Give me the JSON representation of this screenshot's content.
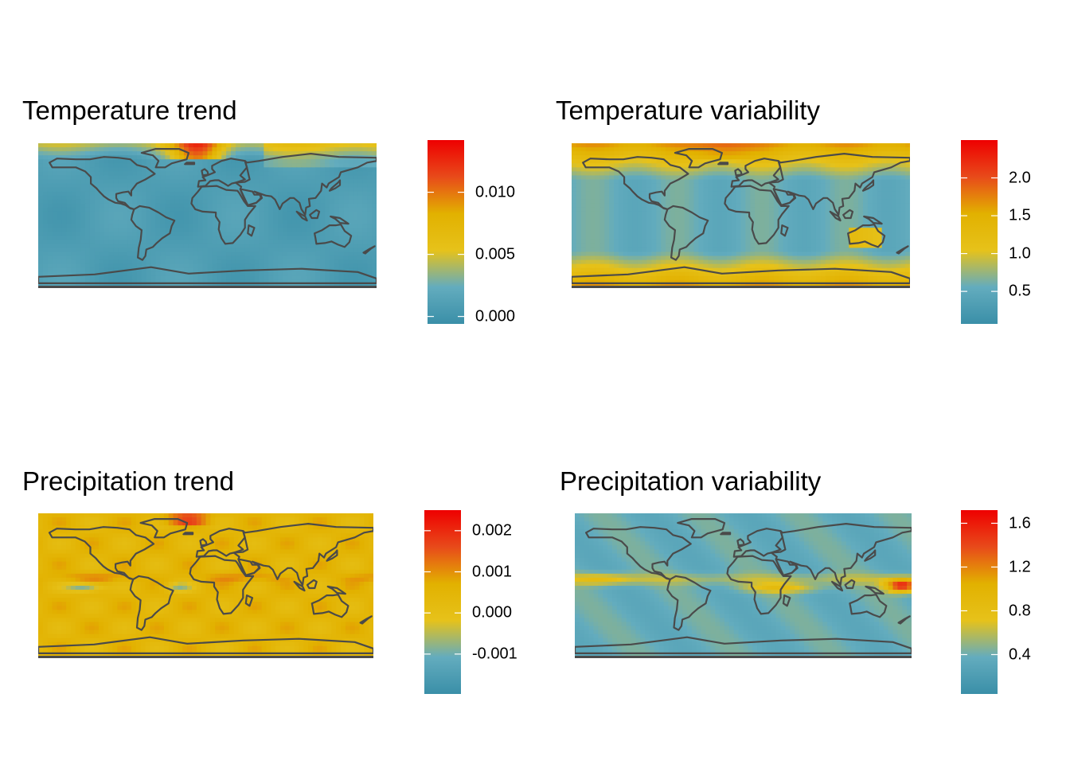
{
  "palette": [
    "#3a8fa8",
    "#63acbe",
    "#e6c21a",
    "#e2b100",
    "#e84a1a",
    "#ee0000"
  ],
  "land_color": "#4a4a4a",
  "panels": [
    {
      "id": "temp-trend",
      "title": "Temperature trend",
      "field": "temperature-trend",
      "legend": {
        "min": -0.0006,
        "max": 0.0142,
        "ticks": [
          {
            "v": 0.0,
            "label": "0.000"
          },
          {
            "v": 0.005,
            "label": "0.005"
          },
          {
            "v": 0.01,
            "label": "0.010"
          }
        ]
      },
      "pattern": "temp-trend"
    },
    {
      "id": "temp-var",
      "title": "Temperature variability",
      "field": "temperature-variability",
      "legend": {
        "min": 0.07,
        "max": 2.5,
        "ticks": [
          {
            "v": 0.5,
            "label": "0.5"
          },
          {
            "v": 1.0,
            "label": "1.0"
          },
          {
            "v": 1.5,
            "label": "1.5"
          },
          {
            "v": 2.0,
            "label": "2.0"
          }
        ]
      },
      "pattern": "temp-var"
    },
    {
      "id": "precip-trend",
      "title": "Precipitation trend",
      "field": "precipitation-trend",
      "legend": {
        "min": -0.00197,
        "max": 0.0025,
        "ticks": [
          {
            "v": -0.001,
            "label": "-0.001"
          },
          {
            "v": 0.0,
            "label": "0.000"
          },
          {
            "v": 0.001,
            "label": "0.001"
          },
          {
            "v": 0.002,
            "label": "0.002"
          }
        ]
      },
      "pattern": "precip-trend"
    },
    {
      "id": "precip-var",
      "title": "Precipitation variability",
      "field": "precipitation-variability",
      "legend": {
        "min": 0.04,
        "max": 1.72,
        "ticks": [
          {
            "v": 0.4,
            "label": "0.4"
          },
          {
            "v": 0.8,
            "label": "0.8"
          },
          {
            "v": 1.2,
            "label": "1.2"
          },
          {
            "v": 1.6,
            "label": "1.6"
          }
        ]
      },
      "pattern": "precip-var"
    }
  ]
}
